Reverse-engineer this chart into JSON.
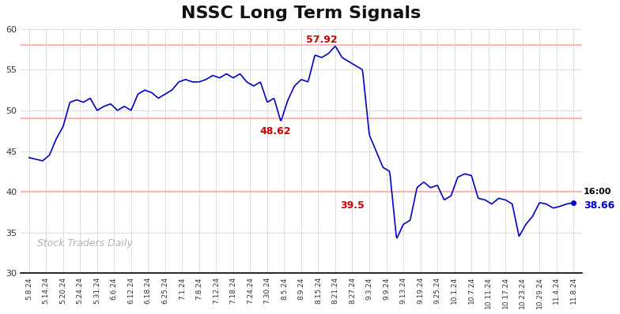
{
  "title": "NSSC Long Term Signals",
  "x_labels": [
    "5.8.24",
    "5.14.24",
    "5.20.24",
    "5.24.24",
    "5.31.24",
    "6.6.24",
    "6.12.24",
    "6.18.24",
    "6.25.24",
    "7.1.24",
    "7.8.24",
    "7.12.24",
    "7.18.24",
    "7.24.24",
    "7.30.24",
    "8.5.24",
    "8.9.24",
    "8.15.24",
    "8.21.24",
    "8.27.24",
    "9.3.24",
    "9.9.24",
    "9.13.24",
    "9.19.24",
    "9.25.24",
    "10.1.24",
    "10.7.24",
    "10.11.24",
    "10.17.24",
    "10.23.24",
    "10.29.24",
    "11.4.24",
    "11.8.24"
  ],
  "ctrl_x": [
    0.0,
    0.4,
    0.8,
    1.2,
    1.6,
    2.0,
    2.4,
    2.8,
    3.2,
    3.6,
    4.0,
    4.4,
    4.8,
    5.2,
    5.6,
    6.0,
    6.4,
    6.8,
    7.2,
    7.6,
    8.0,
    8.4,
    8.8,
    9.2,
    9.6,
    10.0,
    10.4,
    10.8,
    11.2,
    11.6,
    12.0,
    12.4,
    12.8,
    13.2,
    13.6,
    14.0,
    14.4,
    14.8,
    15.2,
    15.6,
    16.0,
    16.4,
    16.8,
    17.2,
    17.6,
    18.0,
    18.4,
    18.8,
    19.2,
    19.6,
    20.0,
    20.4,
    20.8,
    21.2,
    21.6,
    22.0,
    22.4,
    22.8,
    23.2,
    23.6,
    24.0,
    24.4,
    24.8,
    25.2,
    25.6,
    26.0,
    26.4,
    26.8,
    27.2,
    27.6,
    28.0,
    28.4,
    28.8,
    29.2,
    29.6,
    30.0,
    30.4,
    30.8,
    31.2,
    31.6,
    32.0
  ],
  "ctrl_y": [
    44.2,
    44.0,
    43.8,
    44.5,
    46.5,
    48.0,
    51.0,
    51.3,
    51.0,
    51.5,
    50.0,
    50.5,
    50.8,
    50.0,
    50.5,
    50.0,
    52.0,
    52.5,
    52.2,
    51.5,
    52.0,
    52.5,
    53.5,
    53.8,
    53.5,
    53.5,
    53.8,
    54.3,
    54.0,
    54.5,
    54.0,
    54.5,
    53.5,
    53.0,
    53.5,
    51.0,
    51.5,
    48.62,
    51.2,
    53.0,
    53.8,
    53.5,
    56.8,
    56.5,
    57.0,
    57.92,
    56.5,
    56.0,
    55.5,
    55.0,
    47.0,
    45.0,
    43.0,
    42.5,
    34.2,
    36.0,
    36.5,
    40.5,
    41.2,
    40.5,
    40.8,
    39.0,
    39.5,
    41.8,
    42.2,
    42.0,
    39.2,
    39.0,
    38.5,
    39.2,
    39.0,
    38.5,
    34.5,
    36.0,
    37.0,
    38.66,
    38.5,
    38.0,
    38.2,
    38.5,
    38.66
  ],
  "hline_values": [
    58.0,
    49.0,
    40.0
  ],
  "hline_color": "#ffb3b3",
  "line_color": "#0000cc",
  "annotation_color_red": "#cc0000",
  "annotation_color_blue": "#0000cc",
  "watermark": "Stock Traders Daily",
  "watermark_color": "#aaaaaa",
  "ylim": [
    30,
    60
  ],
  "yticks": [
    30,
    35,
    40,
    45,
    50,
    55,
    60
  ],
  "background_color": "#ffffff",
  "grid_color": "#dddddd",
  "title_fontsize": 16
}
